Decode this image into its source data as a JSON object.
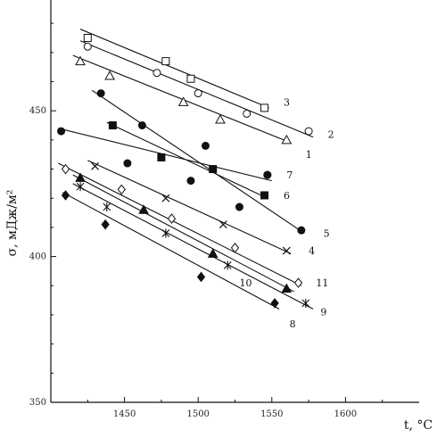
{
  "chart_data": {
    "type": "scatter",
    "title": "",
    "xlabel": "t, °C",
    "ylabel": "σ, мДж/м²",
    "xlim": [
      1400,
      1650
    ],
    "ylim": [
      350,
      488
    ],
    "x_ticks": [
      1450,
      1500,
      1550,
      1600
    ],
    "y_ticks": [
      350,
      400,
      450
    ],
    "series": [
      {
        "name": "1",
        "marker": "triangle-open",
        "points": [
          [
            1420,
            467
          ],
          [
            1440,
            462
          ],
          [
            1490,
            453
          ],
          [
            1515,
            447
          ],
          [
            1560,
            440
          ]
        ],
        "line": [
          [
            1415,
            469
          ],
          [
            1563,
            439
          ]
        ],
        "label_at": [
          1573,
          435
        ]
      },
      {
        "name": "2",
        "marker": "circle-open",
        "points": [
          [
            1425,
            472
          ],
          [
            1472,
            463
          ],
          [
            1500,
            456
          ],
          [
            1533,
            449
          ],
          [
            1575,
            443
          ]
        ],
        "line": [
          [
            1420,
            474
          ],
          [
            1578,
            441
          ]
        ],
        "label_at": [
          1588,
          442
        ]
      },
      {
        "name": "3",
        "marker": "square-open",
        "points": [
          [
            1425,
            475
          ],
          [
            1478,
            467
          ],
          [
            1495,
            461
          ],
          [
            1545,
            451
          ]
        ],
        "line": [
          [
            1420,
            478
          ],
          [
            1548,
            451
          ]
        ],
        "label_at": [
          1558,
          453
        ]
      },
      {
        "name": "4",
        "marker": "cross",
        "points": [
          [
            1430,
            431
          ],
          [
            1478,
            420
          ],
          [
            1517,
            411
          ],
          [
            1560,
            402
          ]
        ],
        "line": [
          [
            1425,
            433
          ],
          [
            1563,
            401
          ]
        ],
        "label_at": [
          1575,
          402
        ]
      },
      {
        "name": "5",
        "marker": "circle-filled",
        "points": [
          [
            1434,
            456
          ],
          [
            1462,
            445
          ],
          [
            1505,
            438
          ],
          [
            1547,
            428
          ],
          [
            1570,
            409
          ]
        ],
        "line": [
          [
            1428,
            457
          ],
          [
            1572,
            408
          ]
        ],
        "label_at": [
          1585,
          408
        ]
      },
      {
        "name": "6",
        "marker": "square-filled",
        "points": [
          [
            1442,
            445
          ],
          [
            1475,
            434
          ],
          [
            1510,
            430
          ],
          [
            1545,
            421
          ]
        ],
        "line": [
          [
            1438,
            446
          ],
          [
            1547,
            420
          ]
        ],
        "label_at": [
          1558,
          421
        ]
      },
      {
        "name": "7",
        "marker": "circle-filled",
        "points": [
          [
            1407,
            443
          ],
          [
            1452,
            432
          ],
          [
            1495,
            426
          ],
          [
            1528,
            417
          ],
          [
            1547,
            428
          ]
        ],
        "line": [
          [
            1405,
            444
          ],
          [
            1550,
            426
          ]
        ],
        "label_at": [
          1560,
          428
        ]
      },
      {
        "name": "8",
        "marker": "diamond-filled",
        "points": [
          [
            1410,
            421
          ],
          [
            1437,
            411
          ],
          [
            1502,
            393
          ],
          [
            1552,
            384
          ]
        ],
        "line": [
          [
            1408,
            422
          ],
          [
            1555,
            382
          ]
        ],
        "label_at": [
          1562,
          377
        ]
      },
      {
        "name": "9",
        "marker": "star",
        "points": [
          [
            1420,
            424
          ],
          [
            1438,
            417
          ],
          [
            1478,
            408
          ],
          [
            1520,
            397
          ],
          [
            1573,
            384
          ]
        ],
        "line": [
          [
            1415,
            425
          ],
          [
            1578,
            382
          ]
        ],
        "label_at": [
          1583,
          381
        ]
      },
      {
        "name": "10",
        "marker": "triangle-filled",
        "points": [
          [
            1420,
            427
          ],
          [
            1463,
            416
          ],
          [
            1510,
            401
          ],
          [
            1560,
            389
          ]
        ],
        "line": [
          [
            1415,
            428
          ],
          [
            1565,
            388
          ]
        ],
        "label_at": [
          1528,
          391
        ]
      },
      {
        "name": "11",
        "marker": "diamond-open",
        "points": [
          [
            1410,
            430
          ],
          [
            1448,
            423
          ],
          [
            1482,
            413
          ],
          [
            1525,
            403
          ],
          [
            1568,
            391
          ]
        ],
        "line": [
          [
            1405,
            432
          ],
          [
            1570,
            390
          ]
        ],
        "label_at": [
          1580,
          391
        ]
      }
    ]
  }
}
